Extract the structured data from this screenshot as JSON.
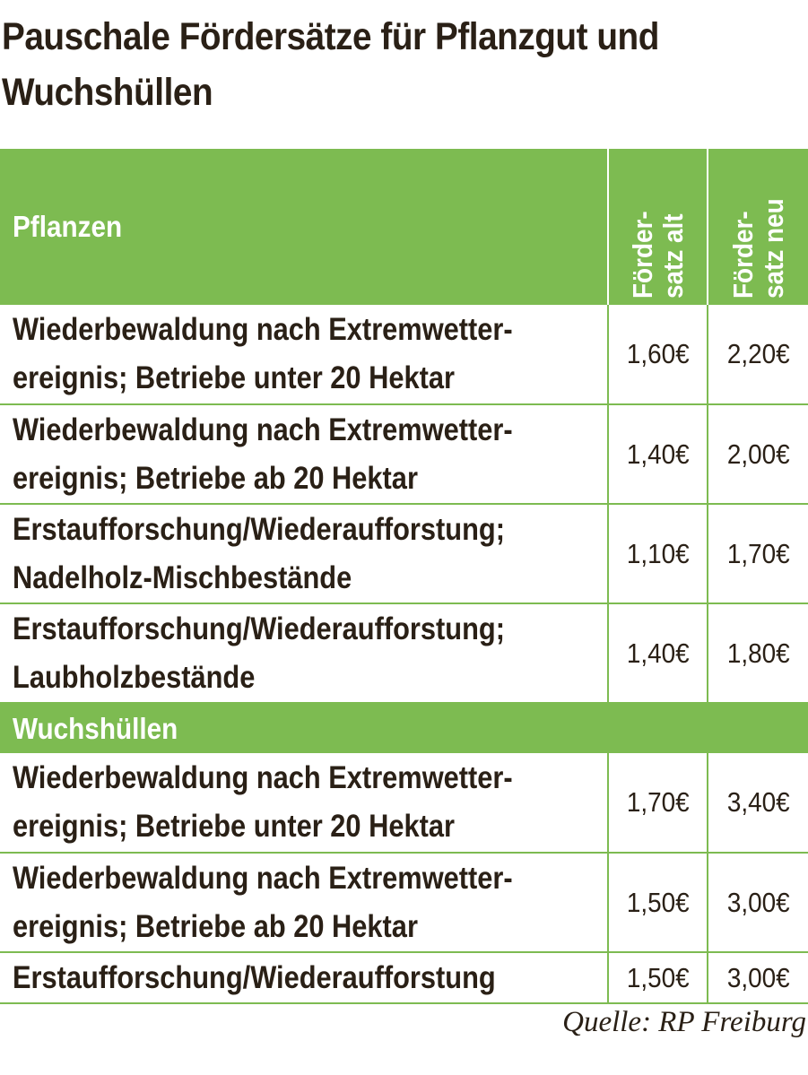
{
  "title": "Pauschale Fördersätze für Pflanzgut und Wuchshüllen",
  "header": {
    "col1": "Pflanzen",
    "col2_line1": "Förder-",
    "col2_line2": "satz alt",
    "col3_line1": "Förder-",
    "col3_line2": "satz neu"
  },
  "pflanzen_rows": [
    {
      "desc": "Wiederbewaldung nach Extremwetter-\nereignis; Betriebe unter 20 Hektar",
      "alt": "1,60€",
      "neu": "2,20€"
    },
    {
      "desc": "Wiederbewaldung nach Extremwetter-\nereignis; Betriebe ab 20 Hektar",
      "alt": "1,40€",
      "neu": "2,00€"
    },
    {
      "desc": "Erstaufforschung/Wiederaufforstung;\nNadelholz-Mischbestände",
      "alt": "1,10€",
      "neu": "1,70€"
    },
    {
      "desc": "Erstaufforschung/Wiederaufforstung;\nLaubholzbestände",
      "alt": "1,40€",
      "neu": "1,80€"
    }
  ],
  "section_wuchshuellen": "Wuchshüllen",
  "wuchshuellen_rows": [
    {
      "desc": "Wiederbewaldung nach Extremwetter-\nereignis; Betriebe unter 20 Hektar",
      "alt": "1,70€",
      "neu": "3,40€"
    },
    {
      "desc": "Wiederbewaldung nach Extremwetter-\nereignis; Betriebe ab 20 Hektar",
      "alt": "1,50€",
      "neu": "3,00€"
    },
    {
      "desc": "Erstaufforschung/Wiederaufforstung",
      "alt": "1,50€",
      "neu": "3,00€"
    }
  ],
  "source": "Quelle: RP Freiburg",
  "colors": {
    "accent_green": "#7dbb51",
    "text_dark": "#2a2016"
  }
}
